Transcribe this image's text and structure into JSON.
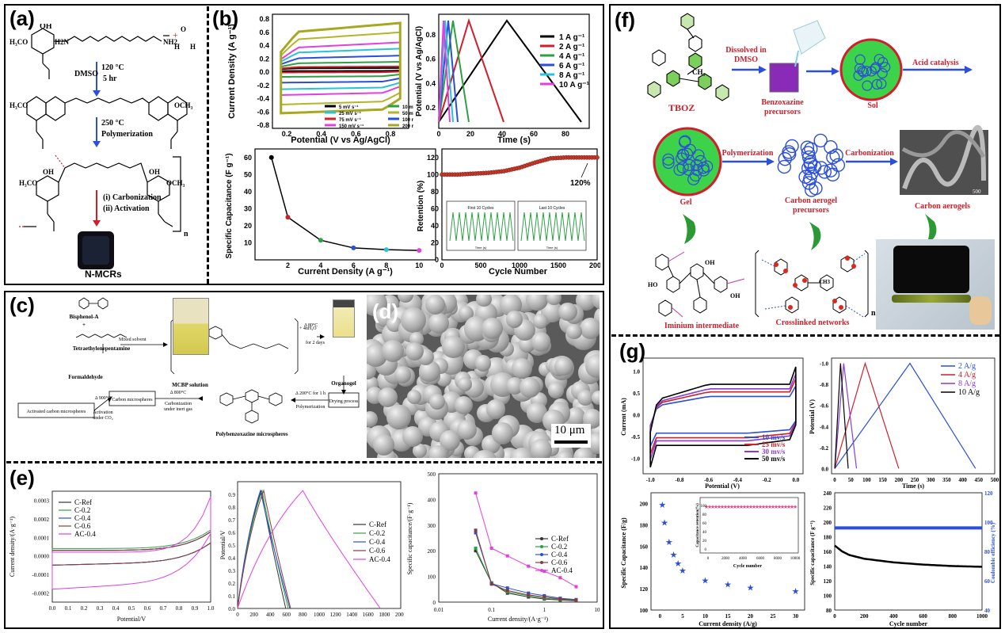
{
  "labels": {
    "a": "(a)",
    "b": "(b)",
    "c": "(c)",
    "d": "(d)",
    "e": "(e)",
    "f": "(f)",
    "g": "(g)"
  },
  "panel_a": {
    "cond1": "120 °C",
    "cond1b": "5 hr",
    "solvent": "DMSO",
    "cond2": "250 °C",
    "cond2b": "Polymerization",
    "step3": "(i) Carbonization",
    "step4": "(ii) Activation",
    "product": "N-MCRs",
    "n": "n",
    "h3co": "H3CO",
    "oh": "OH",
    "h2n": "H2N",
    "nh2": "NH2",
    "h": "H",
    "ocho": "O",
    "n_atom": "N",
    "och3": "OCH3"
  },
  "panel_b": {
    "cv": {
      "ylabel": "Current Density (A g⁻¹)",
      "xlabel": "Potential (V vs Ag/AgCl)",
      "xticks": [
        "0.2",
        "0.4",
        "0.6",
        "0.8"
      ],
      "yticks": [
        "0.8",
        "0.6",
        "0.4",
        "0.2",
        "0.0",
        "-0.2",
        "-0.4",
        "-0.6",
        "-0.8"
      ],
      "legend": [
        "5 mV s⁻¹",
        "10 mV s⁻¹",
        "25 mV s⁻¹",
        "50 mV s⁻¹",
        "75 mV s⁻¹",
        "100 mV s⁻¹",
        "150 mV s⁻¹",
        "200 mV s⁻¹"
      ]
    },
    "gcd": {
      "ylabel": "Potential (V vs Ag/AgCl)",
      "xlabel": "Time (s)",
      "xticks": [
        "0",
        "20",
        "40",
        "60",
        "80"
      ],
      "yticks": [
        "0.8",
        "0.6",
        "0.4",
        "0.2"
      ],
      "legend": [
        "1 A g⁻¹",
        "2 A g⁻¹",
        "4 A g⁻¹",
        "6 A g⁻¹",
        "8 A g⁻¹",
        "10 A g⁻¹"
      ]
    },
    "sc": {
      "ylabel": "Specific Capacitance (F g⁻¹)",
      "xlabel": "Current Density (A g⁻¹)",
      "xticks": [
        "2",
        "4",
        "6",
        "8",
        "10"
      ],
      "yticks": [
        "60",
        "50",
        "40",
        "30",
        "20",
        "10"
      ]
    },
    "ret": {
      "ylabel": "Retention (%)",
      "xlabel": "Cycle Number",
      "xticks": [
        "0",
        "500",
        "1000",
        "1500",
        "2000"
      ],
      "yticks": [
        "120",
        "100",
        "80",
        "60",
        "40",
        "20",
        "0"
      ],
      "annot": "120%",
      "inset1": "First 10 Cycles",
      "inset2": "Last 10 Cycles",
      "inset_x": "Time (s)",
      "inset_y": "Potential (V vs Ag/AgCl)"
    }
  },
  "panel_c": {
    "bpa": "Bisphenol-A",
    "teta": "Tetraethylenepentamine",
    "form": "Formaldehyde",
    "mixed": "Mixed solvent",
    "mcbp": "MCBP solution",
    "cond": "Δ 80°C",
    "cond2": "for 2 days",
    "organogel": "Organogel",
    "drying": "Drying process",
    "poly": "Δ 200°C for 1 h",
    "poly2": "Polymerization",
    "pbz": "Polybenzoxazine microspheres",
    "carb": "Δ 800°C",
    "carb2": "Carbonization",
    "carb3": "under inert gas",
    "cms": "Carbon microspheres",
    "act": "Δ 900°C",
    "act2": "Activation",
    "act3": "under CO₂",
    "acms": "Activated carbon microspheres",
    "formula_end": "+ 4nH₂O"
  },
  "panel_d": {
    "scale": "10 μm"
  },
  "panel_e": {
    "cv": {
      "ylabel": "Current density/(A·g⁻¹)",
      "xlabel": "Potential/V",
      "xticks": [
        "0.0",
        "0.1",
        "0.2",
        "0.3",
        "0.4",
        "0.5",
        "0.6",
        "0.7",
        "0.8",
        "0.9",
        "1.0"
      ],
      "yticks": [
        "0.0003",
        "0.0002",
        "0.0001",
        "0.0000",
        "-0.0001",
        "-0.0002"
      ]
    },
    "gcd": {
      "ylabel": "Potential/V",
      "xlabel": "",
      "xticks": [
        "0",
        "200",
        "400",
        "600",
        "800",
        "1000",
        "1200",
        "1400",
        "1600",
        "1800",
        "2000"
      ],
      "yticks": [
        "0.9",
        "0.8",
        "0.7",
        "0.6",
        "0.5",
        "0.4",
        "0.3",
        "0.2",
        "0.1",
        "0.0"
      ]
    },
    "sc": {
      "ylabel": "Specific capacitance/(F·g⁻¹)",
      "xlabel": "Current density/(A·g⁻¹)",
      "xticks": [
        "0.01",
        "0.1",
        "1",
        "10"
      ],
      "yticks": [
        "500",
        "400",
        "300",
        "200",
        "100",
        "0"
      ]
    },
    "legend": [
      "C-Ref",
      "C-0.2",
      "C-0.4",
      "C-0.6",
      "AC-0.4"
    ]
  },
  "panel_f": {
    "tboz": "TBOZ",
    "dissolved": "Dissolved in",
    "dmso": "DMSO",
    "bp": "Benzoxazine",
    "bp2": "precursors",
    "sol": "Sol",
    "acid": "Acid catalysis",
    "gel": "Gel",
    "polym": "Polymerization",
    "carb": "Carbonization",
    "cap": "Carbon aerogel",
    "cap2": "precursors",
    "ca": "Carbon aerogels",
    "imin": "Iminium  intermediate",
    "cross": "Crosslinked networks",
    "n": "n",
    "ch3": "CH3",
    "oh": "OH",
    "ho": "HO",
    "n_atom": "N",
    "sem_scale": "500"
  },
  "panel_g": {
    "cv": {
      "ylabel": "Current (mA)",
      "xlabel": "Potential (V)",
      "xticks": [
        "-1.0",
        "-0.8",
        "-0.6",
        "-0.4",
        "-0.2",
        "0.0"
      ],
      "yticks": [
        "1.0",
        "0.5",
        "0.0",
        "-0.5",
        "-1.0"
      ],
      "legend": [
        "10 mv/s",
        "25 mv/s",
        "30 mv/s",
        "50 mv/s"
      ]
    },
    "gcd": {
      "ylabel": "Potential (V)",
      "xlabel": "Time (s)",
      "xticks": [
        "0",
        "50",
        "100",
        "150",
        "200",
        "250",
        "300",
        "350",
        "400",
        "450",
        "500"
      ],
      "yticks": [
        "-1.0",
        "-0.8",
        "-0.6",
        "-0.4",
        "-0.2",
        "0.0"
      ],
      "legend": [
        "2 A/g",
        "4 A/g",
        "8 A/g",
        "10 A/g"
      ]
    },
    "sc": {
      "ylabel": "Specific Capacitance (F/g)",
      "xlabel": "Current density (A/g)",
      "xticks": [
        "0",
        "5",
        "10",
        "15",
        "20",
        "25",
        "30"
      ],
      "yticks": [
        "200",
        "180",
        "160",
        "140",
        "120",
        "100"
      ],
      "inset_y": "Capacitance retention(%)",
      "inset_x": "Cycle number",
      "inset_xticks": [
        "0",
        "2000",
        "4000",
        "6000",
        "8000",
        "10000"
      ],
      "inset_yticks": [
        "100",
        "80",
        "60",
        "40",
        "20",
        "0"
      ]
    },
    "cyc": {
      "ylabel": "Specific capacitance (F g⁻¹)",
      "ylabel2": "Coulombic efficiency (%)",
      "xlabel": "Cycle number",
      "xticks": [
        "0",
        "200",
        "400",
        "600",
        "800",
        "1000"
      ],
      "yticks": [
        "240",
        "220",
        "200",
        "180",
        "160",
        "140",
        "120",
        "100",
        "80"
      ],
      "yticks2": [
        "120",
        "100",
        "80",
        "60",
        "40"
      ]
    }
  },
  "colors": {
    "red": "#d11e2a",
    "blue": "#2b4fd8",
    "green": "#2ea043",
    "olive": "#b5b52a",
    "magenta": "#e040e0"
  },
  "chart_data": [
    {
      "type": "line",
      "name": "b-cv",
      "xlabel": "Potential (V vs Ag/AgCl)",
      "ylabel": "Current Density (A g⁻¹)",
      "xlim": [
        0.1,
        0.9
      ],
      "ylim": [
        -0.85,
        0.8
      ],
      "series": [
        {
          "name": "5 mV s⁻¹",
          "halfwidth": 0.02
        },
        {
          "name": "10 mV s⁻¹",
          "halfwidth": 0.04
        },
        {
          "name": "25 mV s⁻¹",
          "halfwidth": 0.1
        },
        {
          "name": "50 mV s⁻¹",
          "halfwidth": 0.18
        },
        {
          "name": "75 mV s⁻¹",
          "halfwidth": 0.27
        },
        {
          "name": "100 mV s⁻¹",
          "halfwidth": 0.35
        },
        {
          "name": "150 mV s⁻¹",
          "halfwidth": 0.48
        },
        {
          "name": "200 mV s⁻¹",
          "halfwidth": 0.6
        }
      ]
    },
    {
      "type": "line",
      "name": "b-gcd",
      "xlabel": "Time (s)",
      "ylabel": "Potential (V vs Ag/AgCl)",
      "xlim": [
        0,
        95
      ],
      "ylim": [
        0.05,
        0.95
      ],
      "series": [
        {
          "name": "1 A g⁻¹",
          "peak": 43,
          "end": 90
        },
        {
          "name": "2 A g⁻¹",
          "peak": 19,
          "end": 41
        },
        {
          "name": "4 A g⁻¹",
          "peak": 9,
          "end": 19
        },
        {
          "name": "6 A g⁻¹",
          "peak": 6,
          "end": 12
        },
        {
          "name": "8 A g⁻¹",
          "peak": 4,
          "end": 9
        },
        {
          "name": "10 A g⁻¹",
          "peak": 3,
          "end": 7
        }
      ]
    },
    {
      "type": "line",
      "name": "b-sc",
      "xlabel": "Current Density (A g⁻¹)",
      "ylabel": "Specific Capacitance (F g⁻¹)",
      "x": [
        1,
        2,
        4,
        6,
        8,
        10
      ],
      "y": [
        60,
        25,
        11.5,
        7,
        6,
        5.5
      ],
      "xlim": [
        0,
        11
      ],
      "ylim": [
        0,
        65
      ]
    },
    {
      "type": "scatter",
      "name": "b-ret",
      "xlabel": "Cycle Number",
      "ylabel": "Retention (%)",
      "xlim": [
        0,
        2000
      ],
      "ylim": [
        0,
        130
      ],
      "x": [
        0,
        200,
        400,
        600,
        800,
        1000,
        1200,
        1400,
        1600,
        1800,
        2000
      ],
      "y": [
        100,
        100,
        101,
        102,
        104,
        108,
        114,
        119,
        120,
        120,
        120
      ]
    },
    {
      "type": "line",
      "name": "e-cv",
      "xlabel": "Potential/V",
      "ylabel": "Current density/(A·g⁻¹)",
      "xlim": [
        0,
        1
      ],
      "ylim": [
        -0.00025,
        0.00035
      ]
    },
    {
      "type": "line",
      "name": "e-gcd",
      "ylabel": "Potential/V",
      "xlim": [
        0,
        2000
      ],
      "ylim": [
        0,
        1
      ],
      "series": [
        {
          "name": "C-Ref",
          "peak": 290,
          "end": 590
        },
        {
          "name": "C-0.2",
          "peak": 300,
          "end": 620
        },
        {
          "name": "C-0.4",
          "peak": 280,
          "end": 640
        },
        {
          "name": "C-0.6",
          "peak": 320,
          "end": 650
        },
        {
          "name": "AC-0.4",
          "peak": 800,
          "end": 1750
        }
      ]
    },
    {
      "type": "line",
      "name": "e-sc",
      "xlabel": "Current density/(A·g⁻¹)",
      "ylabel": "Specific capacitance/(F·g⁻¹)",
      "x": [
        0.05,
        0.1,
        0.2,
        0.5,
        1,
        2,
        4
      ],
      "series": [
        {
          "name": "C-Ref",
          "values": [
            200,
            75,
            35,
            20,
            12,
            8,
            5
          ]
        },
        {
          "name": "C-0.2",
          "values": [
            210,
            75,
            40,
            25,
            15,
            10,
            7
          ]
        },
        {
          "name": "C-0.4",
          "values": [
            270,
            72,
            55,
            35,
            25,
            15,
            10
          ]
        },
        {
          "name": "C-0.6",
          "values": [
            280,
            70,
            45,
            28,
            20,
            12,
            8
          ]
        },
        {
          "name": "AC-0.4",
          "values": [
            425,
            210,
            180,
            140,
            120,
            95,
            60
          ]
        }
      ]
    },
    {
      "type": "line",
      "name": "g-cv",
      "xlabel": "Potential (V)",
      "ylabel": "Current (mA)",
      "xlim": [
        -1.05,
        0.05
      ],
      "ylim": [
        -1.35,
        1.3
      ]
    },
    {
      "type": "line",
      "name": "g-gcd",
      "xlabel": "Time (s)",
      "ylabel": "Potential (V)",
      "xlim": [
        -10,
        500
      ],
      "ylim": [
        -1.05,
        0.05
      ],
      "series": [
        {
          "name": "2 A/g",
          "peak": 235,
          "end": 440
        },
        {
          "name": "4 A/g",
          "peak": 95,
          "end": 200
        },
        {
          "name": "8 A/g",
          "peak": 28,
          "end": 68
        },
        {
          "name": "10 A/g",
          "peak": 18,
          "end": 42
        }
      ]
    },
    {
      "type": "scatter",
      "name": "g-sc",
      "xlabel": "Current density (A/g)",
      "ylabel": "Specific Capacitance (F/g)",
      "x": [
        0.5,
        1,
        2,
        3,
        4,
        5,
        10,
        15,
        20,
        30
      ],
      "y": [
        199,
        182,
        164,
        152,
        144,
        137,
        128,
        124,
        121,
        118
      ],
      "xlim": [
        -2,
        32
      ],
      "ylim": [
        100,
        210
      ]
    },
    {
      "type": "line",
      "name": "g-cyc",
      "xlabel": "Cycle number",
      "ylabel": "Specific capacitance (F g⁻¹)",
      "x": [
        0,
        50,
        100,
        200,
        400,
        600,
        800,
        1000
      ],
      "y": [
        168,
        160,
        155,
        150,
        145,
        142,
        140,
        139
      ],
      "coulombic": 96,
      "xlim": [
        0,
        1000
      ],
      "ylim": [
        80,
        240
      ]
    }
  ]
}
